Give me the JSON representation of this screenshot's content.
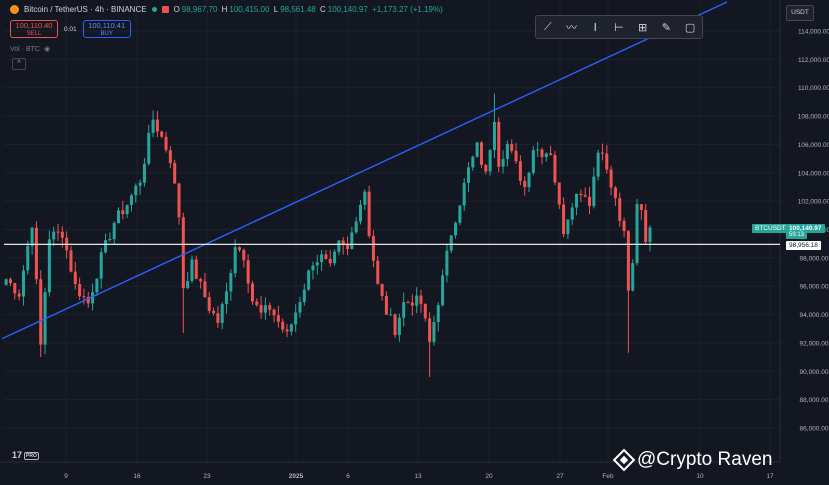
{
  "header": {
    "symbol": "Bitcoin / TetherUS · 4h · BINANCE",
    "ohlc": {
      "o_label": "O",
      "o": "98,967.70",
      "h_label": "H",
      "h": "100,415.00",
      "l_label": "L",
      "l": "98,561.48",
      "c_label": "C",
      "c": "100,140.97",
      "change": "+1,173.27 (+1.19%)"
    },
    "sell_price": "100,110.40",
    "sell_label": "SELL",
    "spread": "0.01",
    "buy_price": "100,110.41",
    "buy_label": "BUY",
    "volume_label": "Vol · BTC",
    "collapse_glyph": "^"
  },
  "currency": "USDT",
  "toolbar_icons": [
    "trend-line-icon",
    "path-icon",
    "text-cursor-icon",
    "date-range-icon",
    "crosshair-icon",
    "brush-icon",
    "box-icon"
  ],
  "price_tags": {
    "symbol": "BTCUSDT",
    "last_price": "100,140.97",
    "countdown": "59:13",
    "hline_price": "98,956.18"
  },
  "logo": {
    "text": "17",
    "pro": "PRO"
  },
  "watermark": "@Crypto Raven",
  "colors": {
    "bg": "#131722",
    "up": "#26a69a",
    "down": "#ef5350",
    "trend": "#2962ff",
    "hline": "#ffffff",
    "grid": "#1e222d"
  },
  "chart_data": {
    "type": "candlestick",
    "y_axis": {
      "range": [
        85000,
        115500
      ],
      "ticks": [
        86000,
        88000,
        90000,
        92000,
        94000,
        96000,
        98000,
        100000,
        102000,
        104000,
        106000,
        108000,
        110000,
        112000,
        114000
      ],
      "tick_labels": [
        "86,000.00",
        "88,000.00",
        "90,000.00",
        "92,000.00",
        "94,000.00",
        "96,000.00",
        "98,000.00",
        "100,000.00",
        "102,000.00",
        "104,000.00",
        "106,000.00",
        "108,000.00",
        "110,000.00",
        "112,000.00",
        "114,000.00"
      ]
    },
    "x_axis": {
      "tick_labels": [
        "9",
        "16",
        "23",
        "2025",
        "6",
        "13",
        "20",
        "27",
        "Feb",
        "10",
        "17"
      ],
      "highlighted_label": "Feb"
    },
    "horizontal_line": 98956.18,
    "trend_line": {
      "from": {
        "index": 0,
        "price": 92300
      },
      "to": {
        "index": 150,
        "price": 115500
      }
    },
    "anchors": [
      [
        0,
        96500
      ],
      [
        3,
        95500
      ],
      [
        6,
        100500
      ],
      [
        8,
        91800
      ],
      [
        10,
        99500
      ],
      [
        13,
        99800
      ],
      [
        16,
        96000
      ],
      [
        19,
        94800
      ],
      [
        22,
        98000
      ],
      [
        25,
        100500
      ],
      [
        28,
        101800
      ],
      [
        31,
        103500
      ],
      [
        34,
        107800
      ],
      [
        36,
        106500
      ],
      [
        38,
        105000
      ],
      [
        40,
        101000
      ],
      [
        41,
        96000
      ],
      [
        43,
        97500
      ],
      [
        45,
        96000
      ],
      [
        47,
        94500
      ],
      [
        49,
        93500
      ],
      [
        51,
        95500
      ],
      [
        53,
        99000
      ],
      [
        55,
        98200
      ],
      [
        57,
        95000
      ],
      [
        59,
        94000
      ],
      [
        61,
        94500
      ],
      [
        63,
        93500
      ],
      [
        65,
        92500
      ],
      [
        67,
        94200
      ],
      [
        69,
        96000
      ],
      [
        71,
        97800
      ],
      [
        73,
        98000
      ],
      [
        75,
        97200
      ],
      [
        77,
        98900
      ],
      [
        79,
        98500
      ],
      [
        81,
        101000
      ],
      [
        83,
        102800
      ],
      [
        84,
        99800
      ],
      [
        86,
        96000
      ],
      [
        88,
        94200
      ],
      [
        90,
        93000
      ],
      [
        92,
        94800
      ],
      [
        94,
        95000
      ],
      [
        96,
        94800
      ],
      [
        98,
        92000
      ],
      [
        99,
        93500
      ],
      [
        101,
        96500
      ],
      [
        103,
        99800
      ],
      [
        105,
        102000
      ],
      [
        107,
        104200
      ],
      [
        109,
        105800
      ],
      [
        111,
        103800
      ],
      [
        113,
        108000
      ],
      [
        114,
        104800
      ],
      [
        116,
        106000
      ],
      [
        118,
        104500
      ],
      [
        120,
        103000
      ],
      [
        122,
        105800
      ],
      [
        124,
        105500
      ],
      [
        126,
        105500
      ],
      [
        128,
        101500
      ],
      [
        129,
        100000
      ],
      [
        131,
        102000
      ],
      [
        133,
        102800
      ],
      [
        135,
        102000
      ],
      [
        137,
        105500
      ],
      [
        138,
        105800
      ],
      [
        139,
        104000
      ],
      [
        141,
        102000
      ],
      [
        143,
        99500
      ],
      [
        144,
        95500
      ],
      [
        145,
        97500
      ],
      [
        146,
        102000
      ],
      [
        147,
        101500
      ],
      [
        148,
        99500
      ],
      [
        149,
        100141
      ]
    ]
  }
}
